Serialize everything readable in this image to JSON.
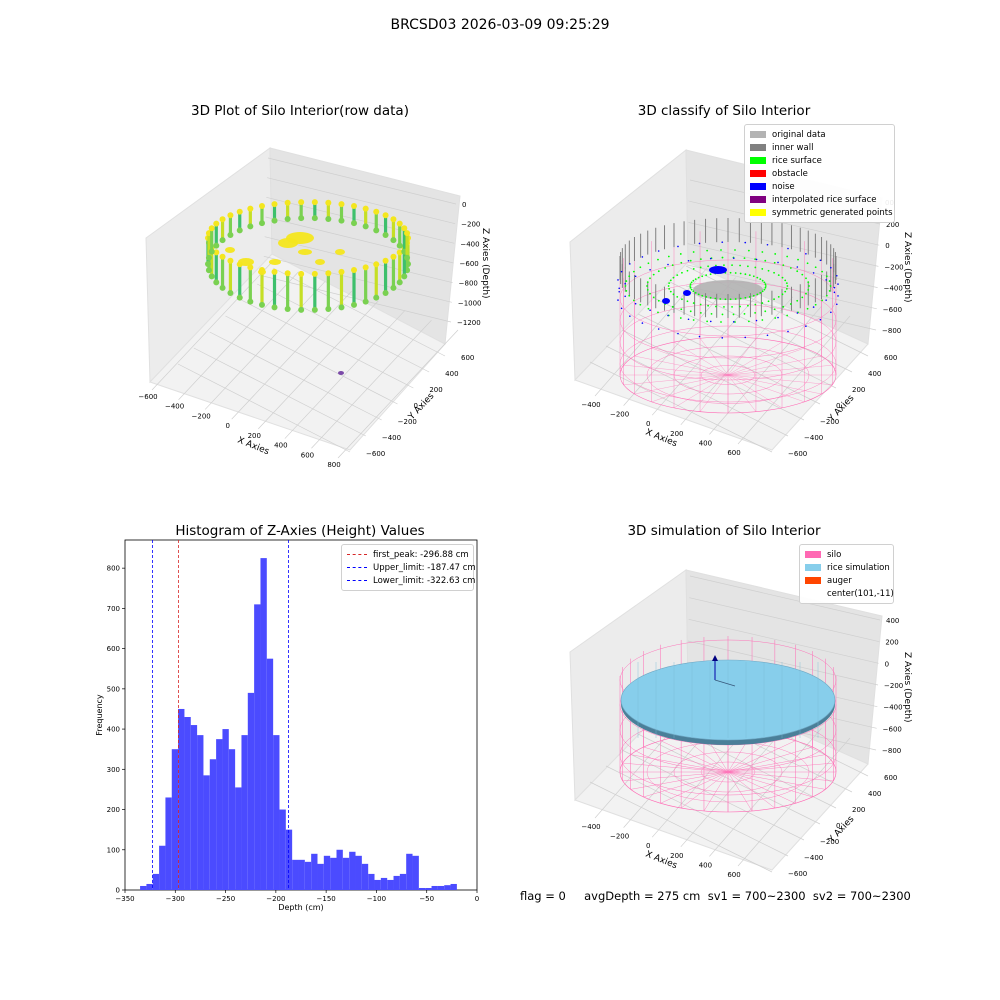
{
  "figure": {
    "suptitle": "BRCSD03 2026-03-09 09:25:29",
    "footer": "flag = 0     avgDepth = 275 cm  sv1 = 700~2300  sv2 = 700~2300"
  },
  "colors": {
    "hist_bar": "#4b4bff",
    "first_peak": "#d62728",
    "limits": "#0000ff",
    "pane": "#ebebeb",
    "silo": "#ff69b4",
    "rice_simulation": "#87ceeb",
    "auger": "#ff4500"
  },
  "chart_data": [
    {
      "type": "scatter",
      "subtype": "3d",
      "title": "3D Plot of Silo Interior(row data)",
      "xlabel": "X Axies",
      "ylabel": "Y Axies",
      "zlabel": "Z Axies (Depth)",
      "x_ticks": [
        "−600",
        "−400",
        "−200",
        "0",
        "200",
        "400",
        "600",
        "800"
      ],
      "y_ticks": [
        "−600",
        "−400",
        "−200",
        "0",
        "200",
        "400",
        "600"
      ],
      "z_ticks": [
        "0",
        "−200",
        "−400",
        "−600",
        "−800",
        "−1000",
        "−1200"
      ],
      "colormap": [
        "#f4e61e",
        "#c5df25",
        "#7ad151",
        "#3ec06c"
      ]
    },
    {
      "type": "scatter",
      "subtype": "3d",
      "title": "3D classify of Silo Interior",
      "xlabel": "X Axies",
      "ylabel": "Y Axies",
      "zlabel": "Z Axies (Depth)",
      "x_ticks": [
        "−400",
        "−200",
        "0",
        "200",
        "400",
        "600"
      ],
      "y_ticks": [
        "−600",
        "−400",
        "−200",
        "0",
        "200",
        "400",
        "600"
      ],
      "z_ticks": [
        "200",
        "0",
        "−200",
        "−400",
        "−600",
        "−800"
      ],
      "z_top_partial": "00",
      "legend": [
        {
          "label": "original data",
          "color": "#b3b3b3"
        },
        {
          "label": "inner wall",
          "color": "#808080"
        },
        {
          "label": "rice surface",
          "color": "#00ff00"
        },
        {
          "label": "obstacle",
          "color": "#ff0000"
        },
        {
          "label": "noise",
          "color": "#0000ff"
        },
        {
          "label": "interpolated rice surface",
          "color": "#800080"
        },
        {
          "label": "symmetric generated points",
          "color": "#ffff00"
        }
      ]
    },
    {
      "type": "bar",
      "subtype": "histogram",
      "title": "Histogram of Z-Axies (Height) Values",
      "xlabel": "Depth (cm)",
      "ylabel": "Frequency",
      "xlim": [
        -350,
        0
      ],
      "ylim": [
        0,
        870
      ],
      "x_ticks": [
        -350,
        -300,
        -250,
        -200,
        -150,
        -100,
        -50,
        0
      ],
      "x_tick_labels": [
        "−350",
        "−300",
        "−250",
        "−200",
        "−150",
        "−100",
        "−50",
        "0"
      ],
      "y_ticks": [
        0,
        100,
        200,
        300,
        400,
        500,
        600,
        700,
        800
      ],
      "y_tick_labels": [
        "0",
        "100",
        "200",
        "300",
        "400",
        "500",
        "600",
        "700",
        "800"
      ],
      "bin_start": -335,
      "bin_width": 6.3,
      "values": [
        10,
        15,
        40,
        110,
        230,
        350,
        450,
        430,
        410,
        385,
        285,
        325,
        375,
        400,
        350,
        255,
        385,
        490,
        710,
        825,
        575,
        385,
        200,
        150,
        75,
        75,
        70,
        90,
        65,
        85,
        80,
        100,
        80,
        95,
        85,
        65,
        40,
        25,
        30,
        25,
        35,
        40,
        90,
        85,
        5,
        5,
        10,
        10,
        12,
        15
      ],
      "lines": [
        {
          "label": "first_peak: -296.88 cm",
          "x": -296.88,
          "color": "#d62728"
        },
        {
          "label": "Upper_limit: -187.47 cm",
          "x": -187.47,
          "color": "#0000ff"
        },
        {
          "label": "Lower_limit: -322.63 cm",
          "x": -322.63,
          "color": "#0000ff"
        }
      ]
    },
    {
      "type": "scatter",
      "subtype": "3d-surface",
      "title": "3D simulation of Silo Interior",
      "xlabel": "X Axies",
      "ylabel": "Y Axies",
      "zlabel": "Z Axies (Depth)",
      "x_ticks": [
        "−400",
        "−200",
        "0",
        "200",
        "400",
        "600"
      ],
      "y_ticks": [
        "−600",
        "−400",
        "−200",
        "0",
        "200",
        "400",
        "600"
      ],
      "z_ticks": [
        "400",
        "200",
        "0",
        "−200",
        "−400",
        "−600",
        "−800"
      ],
      "legend": [
        {
          "label": "silo",
          "color": "#ff69b4"
        },
        {
          "label": "rice simulation",
          "color": "#87ceeb"
        },
        {
          "label": "auger",
          "color": "#ff4500"
        },
        {
          "label": "center(101,-11)",
          "color": ""
        }
      ]
    }
  ]
}
